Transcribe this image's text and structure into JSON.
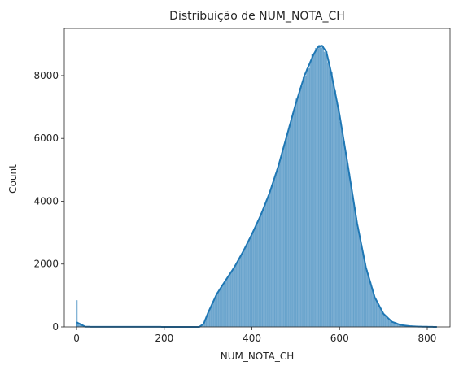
{
  "chart_data": {
    "type": "bar",
    "title": "Distribuição de NUM_NOTA_CH",
    "xlabel": "NUM_NOTA_CH",
    "ylabel": "Count",
    "xlim": [
      -28,
      852
    ],
    "ylim": [
      0,
      9500
    ],
    "x_ticks": [
      0,
      200,
      400,
      600,
      800
    ],
    "y_ticks": [
      0,
      2000,
      4000,
      6000,
      8000
    ],
    "bin_width": 4,
    "bar_color": "#1f77b4",
    "kde_color": "#1f77b4",
    "grid": false,
    "legend": "none",
    "outlier_bar": {
      "x": 0,
      "value": 850
    },
    "density_points": [
      [
        0,
        150
      ],
      [
        20,
        5
      ],
      [
        280,
        0
      ],
      [
        290,
        100
      ],
      [
        300,
        450
      ],
      [
        320,
        1050
      ],
      [
        340,
        1480
      ],
      [
        360,
        1900
      ],
      [
        380,
        2400
      ],
      [
        400,
        2950
      ],
      [
        420,
        3550
      ],
      [
        440,
        4250
      ],
      [
        460,
        5100
      ],
      [
        480,
        6100
      ],
      [
        500,
        7100
      ],
      [
        520,
        8000
      ],
      [
        540,
        8650
      ],
      [
        550,
        8900
      ],
      [
        560,
        8950
      ],
      [
        570,
        8750
      ],
      [
        580,
        8150
      ],
      [
        600,
        6750
      ],
      [
        620,
        5050
      ],
      [
        640,
        3300
      ],
      [
        660,
        1900
      ],
      [
        680,
        950
      ],
      [
        700,
        420
      ],
      [
        720,
        160
      ],
      [
        740,
        60
      ],
      [
        760,
        25
      ],
      [
        780,
        10
      ],
      [
        800,
        5
      ],
      [
        820,
        0
      ]
    ]
  }
}
